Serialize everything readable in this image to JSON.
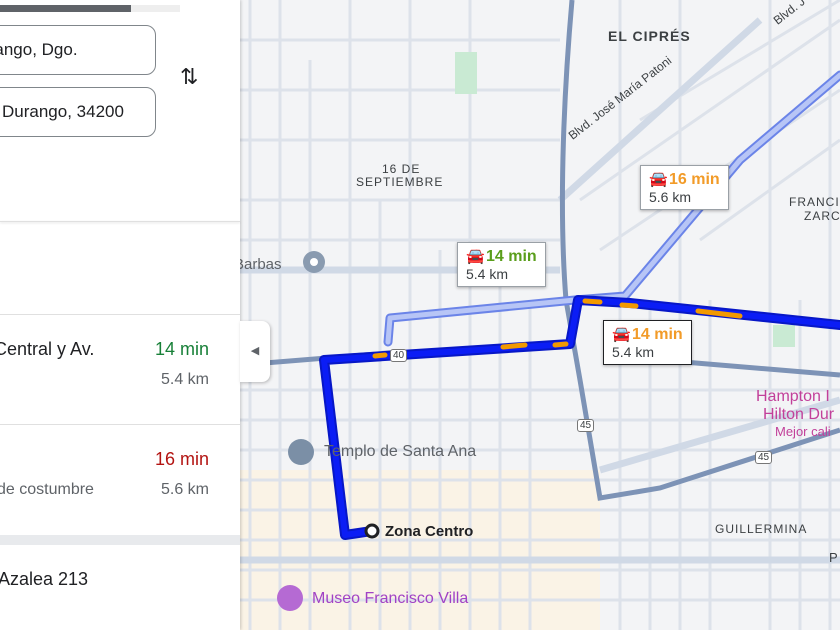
{
  "sidebar": {
    "progress_percent": 73,
    "origin_value": "Durango, Dgo.",
    "destination_value": "Durango, 34200",
    "swap_icon": "swap-vertical-icon",
    "routes": [
      {
        "title": "Central y Av.",
        "subtitle": "",
        "time": "14 min",
        "distance": "5.4 km",
        "time_color": "#188038"
      },
      {
        "title": "",
        "subtitle": "de costumbre",
        "time": "16 min",
        "distance": "5.6 km",
        "time_color": "#b31412"
      }
    ],
    "saved_place": "Azalea 213",
    "collapse_icon": "triangle-left-icon"
  },
  "map": {
    "route_color": "#0b1df5",
    "alt_route_color": "#8ea4f2",
    "traffic_color": "#f29900",
    "callouts": [
      {
        "time": "14 min",
        "distance": "5.4 km",
        "time_color": "#5a9e1b"
      },
      {
        "time": "16 min",
        "distance": "5.6 km",
        "time_color": "#f29b28"
      },
      {
        "time": "14 min",
        "distance": "5.4 km",
        "time_color": "#f29b28"
      }
    ],
    "labels": {
      "el_cipres": "EL CIPRÉS",
      "septiembre_1": "16 DE",
      "septiembre_2": "SEPTIEMBRE",
      "blvd_patoni": "Blvd. José María Patoni",
      "blvd_top": "Blvd. J",
      "barbas": "Barbas",
      "francisco_1": "FRANCI",
      "francisco_2": "ZARC",
      "templo": "Templo de Santa Ana",
      "zona_centro": "Zona Centro",
      "museo": "Museo Francisco Villa",
      "hampton_1": "Hampton I",
      "hampton_2": "Hilton Dur",
      "hampton_3": "Mejor cali",
      "guillermina": "GUILLERMINA",
      "p": "P",
      "hwy40": "40",
      "hwy45a": "45",
      "hwy45b": "45"
    }
  }
}
